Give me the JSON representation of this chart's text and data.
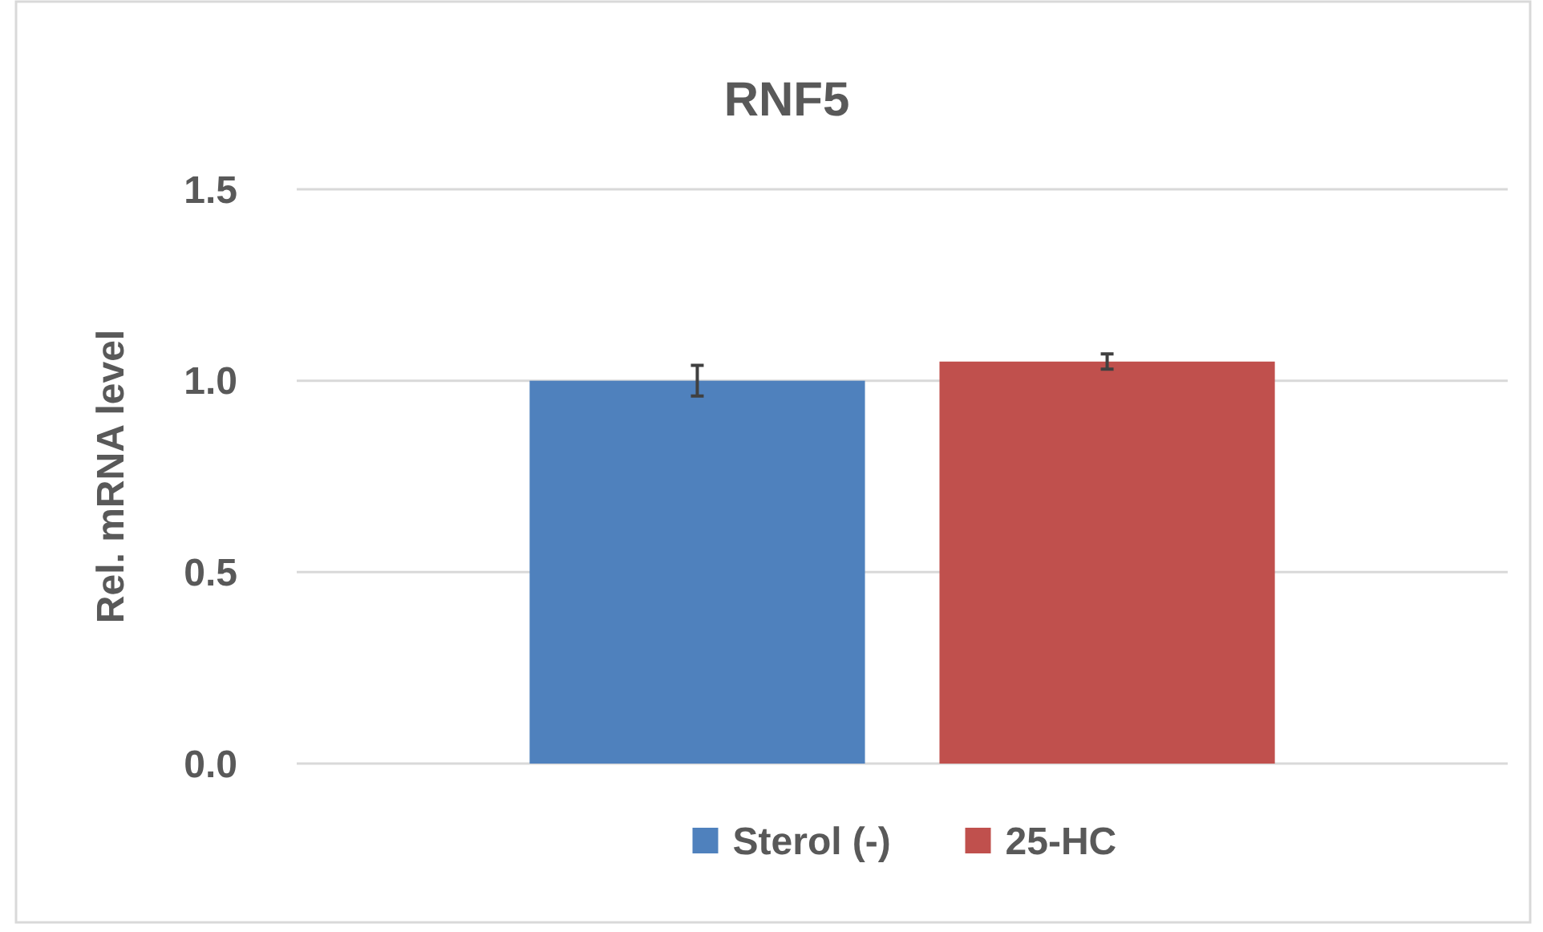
{
  "chart_data": {
    "type": "bar",
    "title": "RNF5",
    "ylabel": "Rel. mRNA level",
    "categories": [
      null
    ],
    "series": [
      {
        "name": "Sterol (-)",
        "color": "#4f81bd",
        "values": [
          1.0
        ],
        "errors": [
          0.04
        ]
      },
      {
        "name": "25-HC",
        "color": "#c0504d",
        "values": [
          1.05
        ],
        "errors": [
          0.02
        ]
      }
    ],
    "ylim": [
      0,
      1.5
    ],
    "yticks": [
      {
        "value": 0,
        "label": "0.0"
      },
      {
        "value": 0.5,
        "label": "0.5"
      },
      {
        "value": 1,
        "label": "1.0"
      },
      {
        "value": 1.5,
        "label": "1.5"
      }
    ],
    "grid": "y",
    "legend": "bottom"
  }
}
